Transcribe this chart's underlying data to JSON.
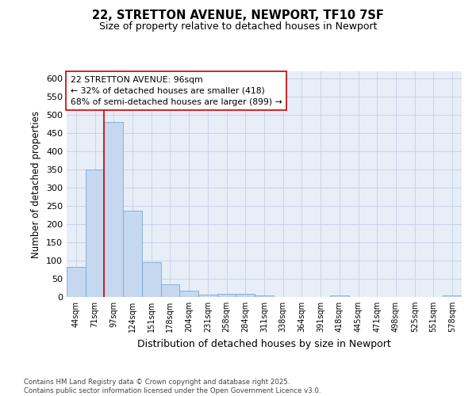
{
  "title1": "22, STRETTON AVENUE, NEWPORT, TF10 7SF",
  "title2": "Size of property relative to detached houses in Newport",
  "xlabel": "Distribution of detached houses by size in Newport",
  "ylabel": "Number of detached properties",
  "categories": [
    "44sqm",
    "71sqm",
    "97sqm",
    "124sqm",
    "151sqm",
    "178sqm",
    "204sqm",
    "231sqm",
    "258sqm",
    "284sqm",
    "311sqm",
    "338sqm",
    "364sqm",
    "391sqm",
    "418sqm",
    "445sqm",
    "471sqm",
    "498sqm",
    "525sqm",
    "551sqm",
    "578sqm"
  ],
  "values": [
    83,
    350,
    480,
    238,
    96,
    35,
    17,
    7,
    8,
    8,
    4,
    0,
    0,
    0,
    4,
    0,
    0,
    0,
    0,
    0,
    4
  ],
  "bar_color": "#c5d8ef",
  "bar_edge_color": "#7aaad4",
  "grid_color": "#c8d4e8",
  "background_color": "#e8eef8",
  "vline_color": "#cc0000",
  "annotation_text": "22 STRETTON AVENUE: 96sqm\n← 32% of detached houses are smaller (418)\n68% of semi-detached houses are larger (899) →",
  "annotation_box_color": "#ffffff",
  "annotation_box_edge": "#cc0000",
  "footer_text": "Contains HM Land Registry data © Crown copyright and database right 2025.\nContains public sector information licensed under the Open Government Licence v3.0.",
  "ylim": [
    0,
    620
  ],
  "yticks": [
    0,
    50,
    100,
    150,
    200,
    250,
    300,
    350,
    400,
    450,
    500,
    550,
    600
  ]
}
